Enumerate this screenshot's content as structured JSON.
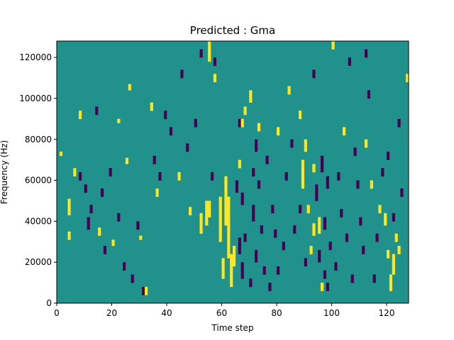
{
  "chart_data": {
    "type": "heatmap",
    "title": "Predicted : Gma",
    "xlabel": "Time step",
    "ylabel": "Frequency (Hz)",
    "xlim": [
      0,
      128
    ],
    "ylim": [
      0,
      128000
    ],
    "x_ticks": [
      0,
      20,
      40,
      60,
      80,
      100,
      120
    ],
    "y_ticks": [
      0,
      20000,
      40000,
      60000,
      80000,
      100000,
      120000
    ],
    "grid": false,
    "legend": "none",
    "colors": {
      "background": "#21918c",
      "low": "#440154",
      "high": "#fde725"
    },
    "cells": {
      "high": [
        [
          1,
          72000,
          2000
        ],
        [
          4,
          43000,
          8000
        ],
        [
          4,
          31000,
          4000
        ],
        [
          6,
          62000,
          4000
        ],
        [
          8,
          90000,
          4000
        ],
        [
          15,
          33000,
          4000
        ],
        [
          20,
          28000,
          3000
        ],
        [
          22,
          88000,
          2000
        ],
        [
          25,
          68000,
          3000
        ],
        [
          26,
          104000,
          3000
        ],
        [
          30,
          31000,
          2000
        ],
        [
          32,
          4000,
          4000
        ],
        [
          34,
          94000,
          4000
        ],
        [
          36,
          52000,
          4000
        ],
        [
          44,
          60000,
          4000
        ],
        [
          48,
          43000,
          4000
        ],
        [
          52,
          34000,
          10000
        ],
        [
          54,
          38000,
          12000
        ],
        [
          55,
          42000,
          8000
        ],
        [
          55,
          118000,
          10000
        ],
        [
          57,
          108000,
          4000
        ],
        [
          59,
          30000,
          22000
        ],
        [
          60,
          12000,
          10000
        ],
        [
          61,
          38000,
          24000
        ],
        [
          62,
          22000,
          30000
        ],
        [
          63,
          8000,
          16000
        ],
        [
          64,
          18000,
          10000
        ],
        [
          66,
          66000,
          4000
        ],
        [
          67,
          86000,
          4000
        ],
        [
          68,
          92000,
          4000
        ],
        [
          70,
          98000,
          6000
        ],
        [
          73,
          84000,
          4000
        ],
        [
          80,
          82000,
          4000
        ],
        [
          84,
          102000,
          4000
        ],
        [
          88,
          90000,
          4000
        ],
        [
          89,
          56000,
          14000
        ],
        [
          90,
          74000,
          6000
        ],
        [
          91,
          44000,
          4000
        ],
        [
          92,
          24000,
          4000
        ],
        [
          93,
          64000,
          4000
        ],
        [
          93,
          33000,
          6000
        ],
        [
          95,
          34000,
          8000
        ],
        [
          96,
          6000,
          4000
        ],
        [
          100,
          124000,
          4000
        ],
        [
          104,
          82000,
          4000
        ],
        [
          112,
          76000,
          4000
        ],
        [
          114,
          56000,
          4000
        ],
        [
          117,
          44000,
          4000
        ],
        [
          119,
          38000,
          6000
        ],
        [
          120,
          22000,
          4000
        ],
        [
          121,
          6000,
          8000
        ],
        [
          122,
          14000,
          10000
        ],
        [
          123,
          30000,
          4000
        ],
        [
          124,
          24000,
          4000
        ],
        [
          127,
          108000,
          4000
        ]
      ],
      "low": [
        [
          8,
          60000,
          4000
        ],
        [
          10,
          54000,
          4000
        ],
        [
          11,
          36000,
          6000
        ],
        [
          12,
          44000,
          4000
        ],
        [
          14,
          92000,
          4000
        ],
        [
          16,
          52000,
          4000
        ],
        [
          17,
          24000,
          4000
        ],
        [
          19,
          62000,
          4000
        ],
        [
          22,
          40000,
          4000
        ],
        [
          24,
          16000,
          4000
        ],
        [
          27,
          10000,
          4000
        ],
        [
          29,
          36000,
          4000
        ],
        [
          31,
          4000,
          4000
        ],
        [
          35,
          68000,
          4000
        ],
        [
          37,
          60000,
          4000
        ],
        [
          39,
          90000,
          4000
        ],
        [
          41,
          82000,
          4000
        ],
        [
          45,
          110000,
          4000
        ],
        [
          47,
          74000,
          4000
        ],
        [
          50,
          86000,
          4000
        ],
        [
          52,
          120000,
          4000
        ],
        [
          56,
          60000,
          4000
        ],
        [
          57,
          116000,
          4000
        ],
        [
          64,
          18000,
          6000
        ],
        [
          65,
          54000,
          6000
        ],
        [
          66,
          24000,
          8000
        ],
        [
          66,
          86000,
          4000
        ],
        [
          67,
          12000,
          8000
        ],
        [
          67,
          48000,
          6000
        ],
        [
          68,
          30000,
          4000
        ],
        [
          70,
          8000,
          4000
        ],
        [
          71,
          62000,
          4000
        ],
        [
          71,
          40000,
          8000
        ],
        [
          72,
          74000,
          6000
        ],
        [
          72,
          20000,
          6000
        ],
        [
          73,
          56000,
          4000
        ],
        [
          74,
          34000,
          4000
        ],
        [
          75,
          14000,
          4000
        ],
        [
          76,
          68000,
          4000
        ],
        [
          77,
          6000,
          4000
        ],
        [
          78,
          44000,
          4000
        ],
        [
          79,
          32000,
          4000
        ],
        [
          80,
          14000,
          4000
        ],
        [
          82,
          26000,
          4000
        ],
        [
          83,
          60000,
          4000
        ],
        [
          85,
          76000,
          4000
        ],
        [
          86,
          34000,
          4000
        ],
        [
          88,
          44000,
          4000
        ],
        [
          90,
          18000,
          4000
        ],
        [
          93,
          110000,
          4000
        ],
        [
          94,
          50000,
          8000
        ],
        [
          95,
          20000,
          6000
        ],
        [
          96,
          64000,
          8000
        ],
        [
          97,
          36000,
          6000
        ],
        [
          97,
          12000,
          4000
        ],
        [
          98,
          56000,
          6000
        ],
        [
          98,
          6000,
          4000
        ],
        [
          99,
          26000,
          4000
        ],
        [
          101,
          16000,
          4000
        ],
        [
          102,
          60000,
          4000
        ],
        [
          103,
          42000,
          4000
        ],
        [
          105,
          30000,
          4000
        ],
        [
          106,
          116000,
          4000
        ],
        [
          107,
          10000,
          4000
        ],
        [
          108,
          72000,
          4000
        ],
        [
          109,
          56000,
          4000
        ],
        [
          110,
          38000,
          4000
        ],
        [
          111,
          24000,
          4000
        ],
        [
          112,
          120000,
          4000
        ],
        [
          113,
          100000,
          4000
        ],
        [
          115,
          10000,
          4000
        ],
        [
          116,
          30000,
          4000
        ],
        [
          118,
          62000,
          4000
        ],
        [
          120,
          70000,
          4000
        ],
        [
          122,
          40000,
          4000
        ],
        [
          124,
          86000,
          4000
        ],
        [
          125,
          52000,
          4000
        ]
      ]
    }
  }
}
